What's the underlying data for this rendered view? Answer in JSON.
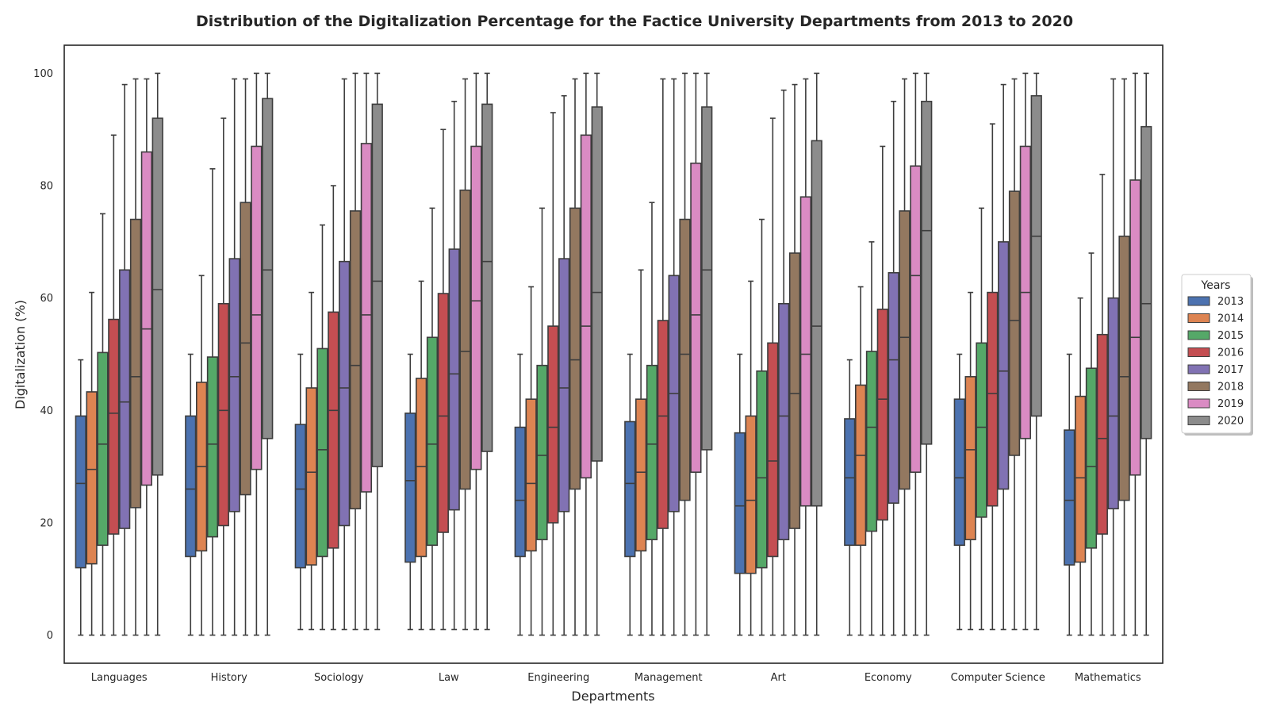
{
  "chart_data": {
    "type": "box",
    "title": "Distribution of the Digitalization Percentage for the Factice University Departments from 2013 to 2020",
    "xlabel": "Departments",
    "ylabel": "Digitalization (%)",
    "ylim": [
      -5,
      105
    ],
    "yticks": [
      0,
      20,
      40,
      60,
      80,
      100
    ],
    "grid": false,
    "legend": {
      "title": "Years",
      "position": "right"
    },
    "categories": [
      "Languages",
      "History",
      "Sociology",
      "Law",
      "Engineering",
      "Management",
      "Art",
      "Economy",
      "Computer Science",
      "Mathematics"
    ],
    "series": [
      {
        "name": "2013",
        "color": "#4c72b0",
        "boxes": [
          {
            "min": 0,
            "q1": 12,
            "median": 27,
            "q3": 39,
            "max": 49
          },
          {
            "min": 0,
            "q1": 14,
            "median": 26,
            "q3": 39,
            "max": 50
          },
          {
            "min": 1,
            "q1": 12,
            "median": 26,
            "q3": 37.5,
            "max": 50
          },
          {
            "min": 1,
            "q1": 13,
            "median": 27.5,
            "q3": 39.5,
            "max": 50
          },
          {
            "min": 0,
            "q1": 14,
            "median": 24,
            "q3": 37,
            "max": 50
          },
          {
            "min": 0,
            "q1": 14,
            "median": 27,
            "q3": 38,
            "max": 50
          },
          {
            "min": 0,
            "q1": 11,
            "median": 23,
            "q3": 36,
            "max": 50
          },
          {
            "min": 0,
            "q1": 16,
            "median": 28,
            "q3": 38.5,
            "max": 49
          },
          {
            "min": 1,
            "q1": 16,
            "median": 28,
            "q3": 42,
            "max": 50
          },
          {
            "min": 0,
            "q1": 12.5,
            "median": 24,
            "q3": 36.5,
            "max": 50
          }
        ]
      },
      {
        "name": "2014",
        "color": "#dd8452",
        "boxes": [
          {
            "min": 0,
            "q1": 12.7,
            "median": 29.5,
            "q3": 43.3,
            "max": 61
          },
          {
            "min": 0,
            "q1": 15,
            "median": 30,
            "q3": 45,
            "max": 64
          },
          {
            "min": 1,
            "q1": 12.5,
            "median": 29,
            "q3": 44,
            "max": 61
          },
          {
            "min": 1,
            "q1": 14,
            "median": 30,
            "q3": 45.7,
            "max": 63
          },
          {
            "min": 0,
            "q1": 15,
            "median": 27,
            "q3": 42,
            "max": 62
          },
          {
            "min": 0,
            "q1": 15,
            "median": 29,
            "q3": 42,
            "max": 65
          },
          {
            "min": 0,
            "q1": 11,
            "median": 24,
            "q3": 39,
            "max": 63
          },
          {
            "min": 0,
            "q1": 16,
            "median": 32,
            "q3": 44.5,
            "max": 62
          },
          {
            "min": 1,
            "q1": 17,
            "median": 33,
            "q3": 46,
            "max": 61
          },
          {
            "min": 0,
            "q1": 13,
            "median": 28,
            "q3": 42.5,
            "max": 60
          }
        ]
      },
      {
        "name": "2015",
        "color": "#55a868",
        "boxes": [
          {
            "min": 0,
            "q1": 16,
            "median": 34,
            "q3": 50.3,
            "max": 75
          },
          {
            "min": 0,
            "q1": 17.5,
            "median": 34,
            "q3": 49.5,
            "max": 83
          },
          {
            "min": 1,
            "q1": 14,
            "median": 33,
            "q3": 51,
            "max": 73
          },
          {
            "min": 1,
            "q1": 16,
            "median": 34,
            "q3": 53,
            "max": 76
          },
          {
            "min": 0,
            "q1": 17,
            "median": 32,
            "q3": 48,
            "max": 76
          },
          {
            "min": 0,
            "q1": 17,
            "median": 34,
            "q3": 48,
            "max": 77
          },
          {
            "min": 0,
            "q1": 12,
            "median": 28,
            "q3": 47,
            "max": 74
          },
          {
            "min": 0,
            "q1": 18.5,
            "median": 37,
            "q3": 50.5,
            "max": 70
          },
          {
            "min": 1,
            "q1": 21,
            "median": 37,
            "q3": 52,
            "max": 76
          },
          {
            "min": 0,
            "q1": 15.5,
            "median": 30,
            "q3": 47.5,
            "max": 68
          }
        ]
      },
      {
        "name": "2016",
        "color": "#c44e52",
        "boxes": [
          {
            "min": 0,
            "q1": 18,
            "median": 39.5,
            "q3": 56.2,
            "max": 89
          },
          {
            "min": 0,
            "q1": 19.5,
            "median": 40,
            "q3": 59,
            "max": 92
          },
          {
            "min": 1,
            "q1": 15.5,
            "median": 40,
            "q3": 57.5,
            "max": 80
          },
          {
            "min": 1,
            "q1": 18.3,
            "median": 39,
            "q3": 60.8,
            "max": 90
          },
          {
            "min": 0,
            "q1": 20,
            "median": 37,
            "q3": 55,
            "max": 93
          },
          {
            "min": 0,
            "q1": 19,
            "median": 39,
            "q3": 56,
            "max": 99
          },
          {
            "min": 0,
            "q1": 14,
            "median": 31,
            "q3": 52,
            "max": 92
          },
          {
            "min": 0,
            "q1": 20.5,
            "median": 42,
            "q3": 58,
            "max": 87
          },
          {
            "min": 1,
            "q1": 23,
            "median": 43,
            "q3": 61,
            "max": 91
          },
          {
            "min": 0,
            "q1": 18,
            "median": 35,
            "q3": 53.5,
            "max": 82
          }
        ]
      },
      {
        "name": "2017",
        "color": "#8172b3",
        "boxes": [
          {
            "min": 0,
            "q1": 19,
            "median": 41.5,
            "q3": 65,
            "max": 98
          },
          {
            "min": 0,
            "q1": 22,
            "median": 46,
            "q3": 67,
            "max": 99
          },
          {
            "min": 1,
            "q1": 19.5,
            "median": 44,
            "q3": 66.5,
            "max": 99
          },
          {
            "min": 1,
            "q1": 22.3,
            "median": 46.5,
            "q3": 68.7,
            "max": 95
          },
          {
            "min": 0,
            "q1": 22,
            "median": 44,
            "q3": 67,
            "max": 96
          },
          {
            "min": 0,
            "q1": 22,
            "median": 43,
            "q3": 64,
            "max": 99
          },
          {
            "min": 0,
            "q1": 17,
            "median": 39,
            "q3": 59,
            "max": 97
          },
          {
            "min": 0,
            "q1": 23.5,
            "median": 49,
            "q3": 64.5,
            "max": 95
          },
          {
            "min": 1,
            "q1": 26,
            "median": 47,
            "q3": 70,
            "max": 98
          },
          {
            "min": 0,
            "q1": 22.5,
            "median": 39,
            "q3": 60,
            "max": 99
          }
        ]
      },
      {
        "name": "2018",
        "color": "#937860",
        "boxes": [
          {
            "min": 0,
            "q1": 22.7,
            "median": 46,
            "q3": 74,
            "max": 99
          },
          {
            "min": 0,
            "q1": 25,
            "median": 52,
            "q3": 77,
            "max": 99
          },
          {
            "min": 1,
            "q1": 22.5,
            "median": 48,
            "q3": 75.5,
            "max": 100
          },
          {
            "min": 1,
            "q1": 26,
            "median": 50.5,
            "q3": 79.2,
            "max": 99
          },
          {
            "min": 0,
            "q1": 26,
            "median": 49,
            "q3": 76,
            "max": 99
          },
          {
            "min": 0,
            "q1": 24,
            "median": 50,
            "q3": 74,
            "max": 100
          },
          {
            "min": 0,
            "q1": 19,
            "median": 43,
            "q3": 68,
            "max": 98
          },
          {
            "min": 0,
            "q1": 26,
            "median": 53,
            "q3": 75.5,
            "max": 99
          },
          {
            "min": 1,
            "q1": 32,
            "median": 56,
            "q3": 79,
            "max": 99
          },
          {
            "min": 0,
            "q1": 24,
            "median": 46,
            "q3": 71,
            "max": 99
          }
        ]
      },
      {
        "name": "2019",
        "color": "#da8bc3",
        "boxes": [
          {
            "min": 0,
            "q1": 26.7,
            "median": 54.5,
            "q3": 86,
            "max": 99
          },
          {
            "min": 0,
            "q1": 29.5,
            "median": 57,
            "q3": 87,
            "max": 100
          },
          {
            "min": 1,
            "q1": 25.5,
            "median": 57,
            "q3": 87.5,
            "max": 100
          },
          {
            "min": 1,
            "q1": 29.5,
            "median": 59.5,
            "q3": 87,
            "max": 100
          },
          {
            "min": 0,
            "q1": 28,
            "median": 55,
            "q3": 89,
            "max": 100
          },
          {
            "min": 0,
            "q1": 29,
            "median": 57,
            "q3": 84,
            "max": 100
          },
          {
            "min": 0,
            "q1": 23,
            "median": 50,
            "q3": 78,
            "max": 99
          },
          {
            "min": 0,
            "q1": 29,
            "median": 64,
            "q3": 83.5,
            "max": 100
          },
          {
            "min": 1,
            "q1": 35,
            "median": 61,
            "q3": 87,
            "max": 100
          },
          {
            "min": 0,
            "q1": 28.5,
            "median": 53,
            "q3": 81,
            "max": 100
          }
        ]
      },
      {
        "name": "2020",
        "color": "#8c8c8c",
        "boxes": [
          {
            "min": 0,
            "q1": 28.5,
            "median": 61.5,
            "q3": 92,
            "max": 100
          },
          {
            "min": 0,
            "q1": 35,
            "median": 65,
            "q3": 95.5,
            "max": 100
          },
          {
            "min": 1,
            "q1": 30,
            "median": 63,
            "q3": 94.5,
            "max": 100
          },
          {
            "min": 1,
            "q1": 32.7,
            "median": 66.5,
            "q3": 94.5,
            "max": 100
          },
          {
            "min": 0,
            "q1": 31,
            "median": 61,
            "q3": 94,
            "max": 100
          },
          {
            "min": 0,
            "q1": 33,
            "median": 65,
            "q3": 94,
            "max": 100
          },
          {
            "min": 0,
            "q1": 23,
            "median": 55,
            "q3": 88,
            "max": 100
          },
          {
            "min": 0,
            "q1": 34,
            "median": 72,
            "q3": 95,
            "max": 100
          },
          {
            "min": 1,
            "q1": 39,
            "median": 71,
            "q3": 96,
            "max": 100
          },
          {
            "min": 0,
            "q1": 35,
            "median": 59,
            "q3": 90.5,
            "max": 100
          }
        ]
      }
    ]
  }
}
